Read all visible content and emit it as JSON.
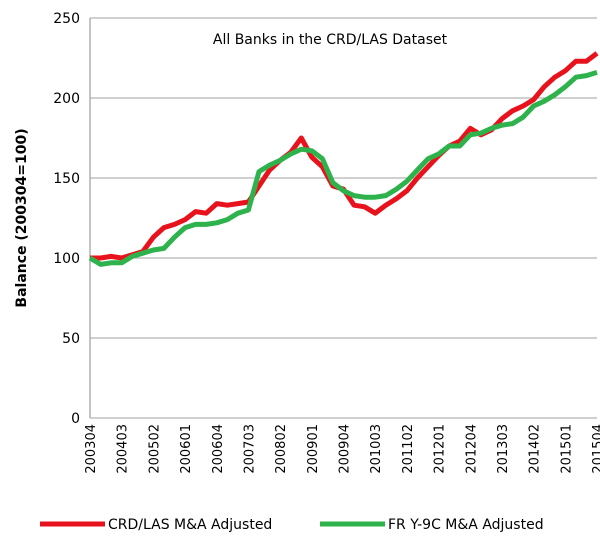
{
  "chart_data": {
    "type": "line",
    "title": "All Banks in the CRD/LAS Dataset",
    "y_label": "Balance (200304=100)",
    "categories": [
      "200304",
      null,
      null,
      "200403",
      null,
      null,
      "200502",
      null,
      null,
      "200601",
      null,
      null,
      "200604",
      null,
      null,
      "200703",
      null,
      null,
      "200802",
      null,
      null,
      "200901",
      null,
      null,
      "200904",
      null,
      null,
      "201003",
      null,
      null,
      "201102",
      null,
      null,
      "201201",
      null,
      null,
      "201204",
      null,
      null,
      "201303",
      null,
      null,
      "201402",
      null,
      null,
      "201501",
      null,
      null,
      "201504"
    ],
    "series": [
      {
        "name": "CRD/LAS M&A Adjusted",
        "color": "#e8121c",
        "values": [
          100,
          100,
          101,
          100,
          102,
          104,
          113,
          119,
          121,
          124,
          129,
          128,
          134,
          133,
          134,
          135,
          145,
          155,
          161,
          166,
          175,
          163,
          157,
          145,
          143,
          133,
          132,
          128,
          133,
          137,
          142,
          150,
          157,
          164,
          170,
          173,
          181,
          177,
          180,
          187,
          192,
          195,
          199,
          207,
          213,
          217,
          223,
          223,
          228
        ]
      },
      {
        "name": "FR Y-9C M&A Adjusted",
        "color": "#2eb34c",
        "values": [
          100,
          96,
          97,
          97,
          101,
          103,
          105,
          106,
          113,
          119,
          121,
          121,
          122,
          124,
          128,
          130,
          154,
          158,
          161,
          165,
          168,
          167,
          162,
          147,
          142,
          139,
          138,
          138,
          139,
          143,
          148,
          155,
          162,
          165,
          170,
          170,
          177,
          178,
          181,
          183,
          184,
          188,
          195,
          198,
          202,
          207,
          213,
          214,
          216
        ]
      }
    ],
    "ylim": [
      0,
      250
    ],
    "yticks": [
      0,
      50,
      100,
      150,
      200,
      250
    ],
    "grid": true,
    "legend": "bottom"
  }
}
